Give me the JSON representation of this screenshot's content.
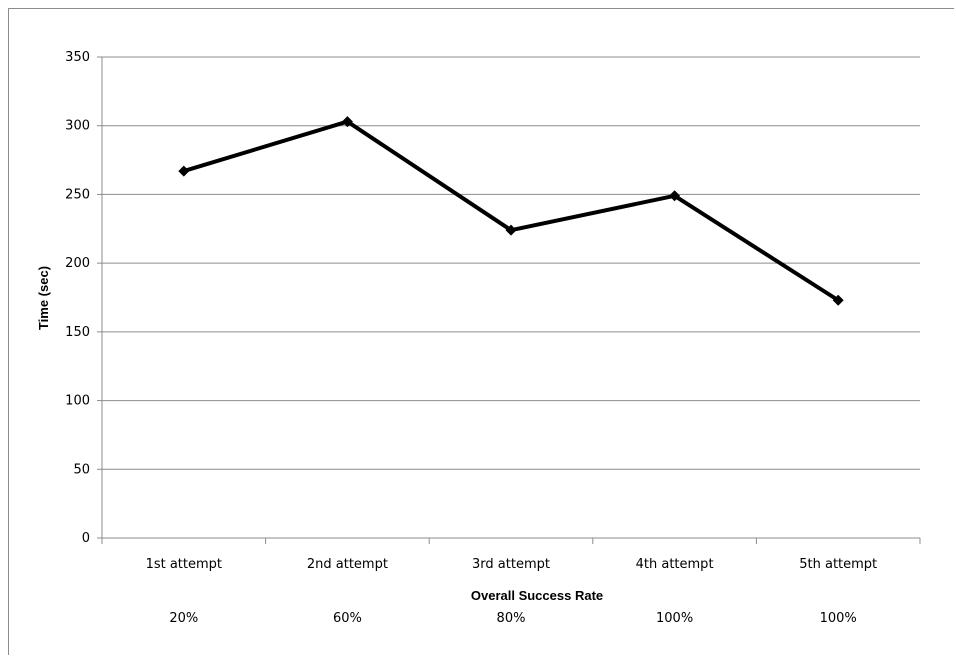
{
  "chart_data": {
    "type": "line",
    "categories": [
      "1st attempt",
      "2nd attempt",
      "3rd attempt",
      "4th attempt",
      "5th attempt"
    ],
    "series": [
      {
        "values": [
          267,
          303,
          224,
          249,
          173
        ]
      }
    ],
    "xlabel": "Overall Success Rate",
    "ylabel": "Time (sec)",
    "ylim": [
      0,
      350
    ],
    "yticks": [
      0,
      50,
      100,
      150,
      200,
      250,
      300,
      350
    ],
    "success_rates": [
      "20%",
      "60%",
      "80%",
      "100%",
      "100%"
    ],
    "grid": true,
    "legend": "none",
    "line_color": "#000000",
    "grid_color": "#8c8c8c"
  }
}
